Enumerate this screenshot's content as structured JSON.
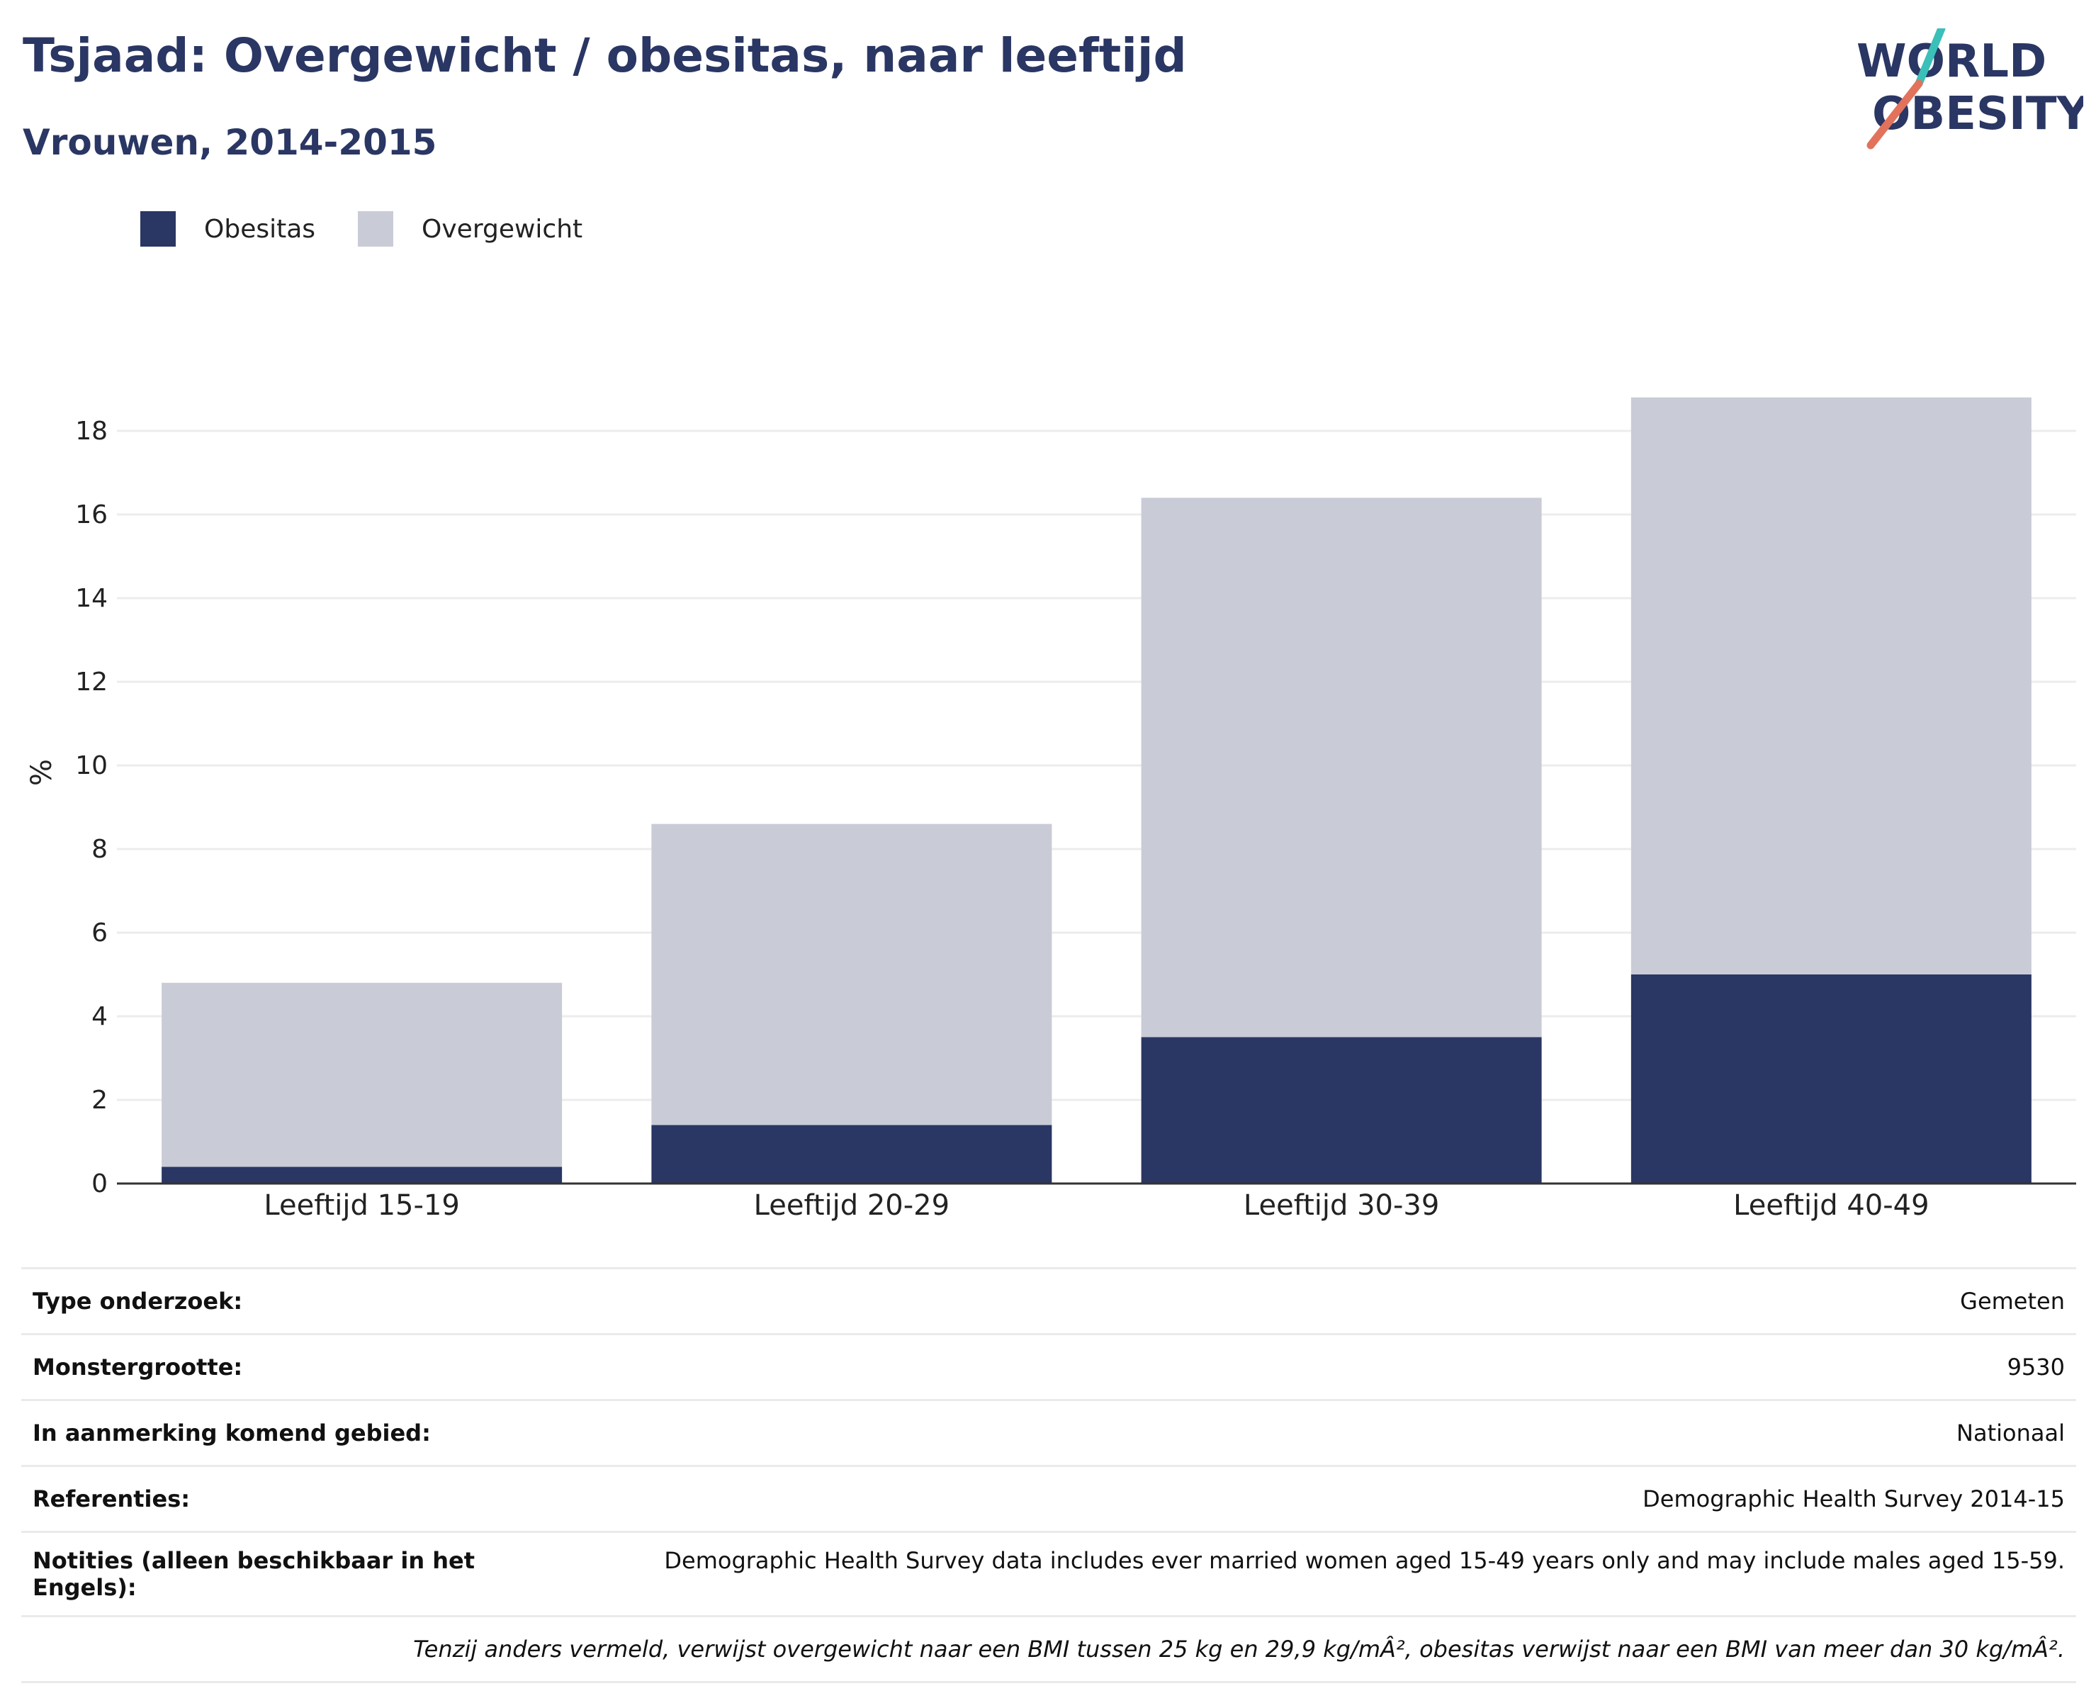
{
  "title": "Tsjaad: Overgewicht / obesitas, naar leeftijd",
  "subtitle": "Vrouwen, 2014-2015",
  "logo": {
    "line1": "WORLD",
    "line2": "OBESITY"
  },
  "colors": {
    "obesitas": "#2a3663",
    "overgewicht": "#c9cbd7",
    "text": "#2a3663",
    "logo_teal": "#3bbfb9",
    "logo_coral": "#e2725b"
  },
  "chart_data": {
    "type": "bar",
    "stacked": true,
    "categories": [
      "Leeftijd 15-19",
      "Leeftijd 20-29",
      "Leeftijd 30-39",
      "Leeftijd 40-49"
    ],
    "series": [
      {
        "name": "Obesitas",
        "values": [
          0.4,
          1.4,
          3.5,
          5.0
        ]
      },
      {
        "name": "Overgewicht",
        "values": [
          4.4,
          7.2,
          12.9,
          13.8
        ]
      }
    ],
    "totals": [
      4.8,
      8.6,
      16.4,
      18.8
    ],
    "ylabel": "%",
    "xlabel": "",
    "ylim": [
      0,
      18.8
    ],
    "yticks": [
      0,
      2,
      4,
      6,
      8,
      10,
      12,
      14,
      16,
      18
    ],
    "grid": true,
    "legend": "top-left"
  },
  "info": [
    {
      "key": "Type onderzoek:",
      "value": "Gemeten"
    },
    {
      "key": "Monstergrootte:",
      "value": "9530"
    },
    {
      "key": "In aanmerking komend gebied:",
      "value": "Nationaal"
    },
    {
      "key": "Referenties:",
      "value": "Demographic Health Survey 2014-15"
    },
    {
      "key": "Notities (alleen beschikbaar in het Engels):",
      "value": "Demographic Health Survey data includes ever married women aged 15-49 years only and may include males aged 15-59."
    }
  ],
  "footnote": "Tenzij anders vermeld, verwijst overgewicht naar een BMI tussen 25 kg en 29,9 kg/mÂ², obesitas verwijst naar een BMI van meer dan 30 kg/mÂ²."
}
